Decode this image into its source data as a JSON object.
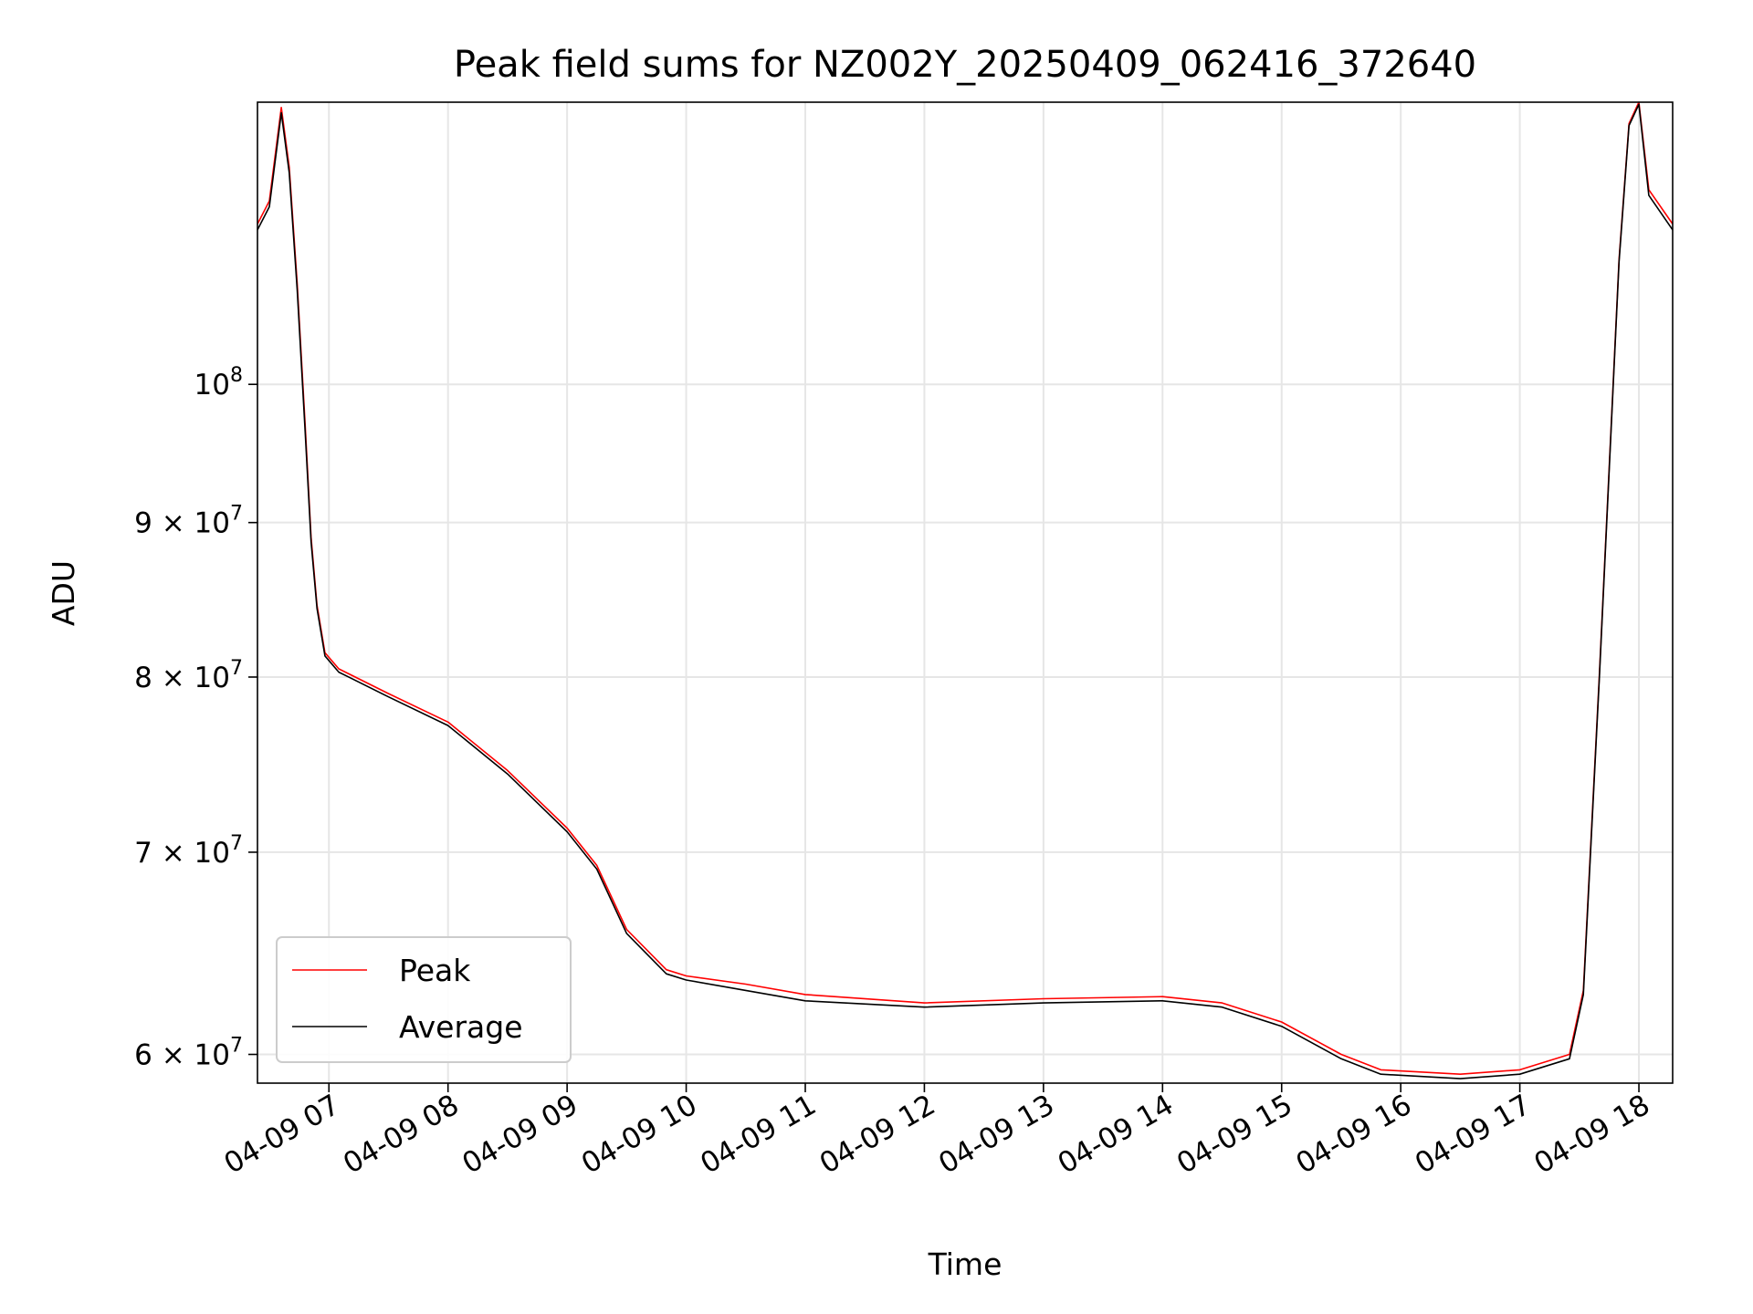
{
  "chart_data": {
    "type": "line",
    "title": "Peak field sums for NZ002Y_20250409_062416_372640",
    "xlabel": "Time",
    "ylabel": "ADU",
    "x_axis": "time",
    "y_scale": "log",
    "xlim": [
      "2025-04-09 06:24",
      "2025-04-09 18:17"
    ],
    "ylim": [
      58700000,
      124000000
    ],
    "x_ticks": [
      {
        "t": "2025-04-09 07:00",
        "label": "04-09 07"
      },
      {
        "t": "2025-04-09 08:00",
        "label": "04-09 08"
      },
      {
        "t": "2025-04-09 09:00",
        "label": "04-09 09"
      },
      {
        "t": "2025-04-09 10:00",
        "label": "04-09 10"
      },
      {
        "t": "2025-04-09 11:00",
        "label": "04-09 11"
      },
      {
        "t": "2025-04-09 12:00",
        "label": "04-09 12"
      },
      {
        "t": "2025-04-09 13:00",
        "label": "04-09 13"
      },
      {
        "t": "2025-04-09 14:00",
        "label": "04-09 14"
      },
      {
        "t": "2025-04-09 15:00",
        "label": "04-09 15"
      },
      {
        "t": "2025-04-09 16:00",
        "label": "04-09 16"
      },
      {
        "t": "2025-04-09 17:00",
        "label": "04-09 17"
      },
      {
        "t": "2025-04-09 18:00",
        "label": "04-09 18"
      }
    ],
    "y_ticks": [
      {
        "value": 60000000,
        "base": "6 × 10",
        "exp": "7"
      },
      {
        "value": 70000000,
        "base": "7 × 10",
        "exp": "7"
      },
      {
        "value": 80000000,
        "base": "8 × 10",
        "exp": "7"
      },
      {
        "value": 90000000,
        "base": "9 × 10",
        "exp": "7"
      },
      {
        "value": 100000000,
        "base": "10",
        "exp": "8"
      }
    ],
    "grid": true,
    "legend_position": "lower-left",
    "series": [
      {
        "name": "Peak",
        "color": "#ff0000",
        "x": [
          "2025-04-09 06:24",
          "2025-04-09 06:30",
          "2025-04-09 06:36",
          "2025-04-09 06:40",
          "2025-04-09 06:44",
          "2025-04-09 06:48",
          "2025-04-09 06:51",
          "2025-04-09 06:54",
          "2025-04-09 06:58",
          "2025-04-09 07:05",
          "2025-04-09 07:30",
          "2025-04-09 08:00",
          "2025-04-09 08:30",
          "2025-04-09 09:00",
          "2025-04-09 09:15",
          "2025-04-09 09:30",
          "2025-04-09 09:50",
          "2025-04-09 10:00",
          "2025-04-09 10:30",
          "2025-04-09 11:00",
          "2025-04-09 12:00",
          "2025-04-09 13:00",
          "2025-04-09 14:00",
          "2025-04-09 14:30",
          "2025-04-09 15:00",
          "2025-04-09 15:30",
          "2025-04-09 15:50",
          "2025-04-09 16:30",
          "2025-04-09 17:00",
          "2025-04-09 17:25",
          "2025-04-09 17:32",
          "2025-04-09 17:40",
          "2025-04-09 17:50",
          "2025-04-09 17:55",
          "2025-04-09 18:00",
          "2025-04-09 18:05",
          "2025-04-09 18:17"
        ],
        "values": [
          113000000,
          115000000,
          123500000,
          118000000,
          108000000,
          97000000,
          89000000,
          84500000,
          81500000,
          80500000,
          79000000,
          77300000,
          74500000,
          71300000,
          69300000,
          66000000,
          64000000,
          63700000,
          63300000,
          62800000,
          62400000,
          62600000,
          62700000,
          62400000,
          61500000,
          60000000,
          59300000,
          59100000,
          59300000,
          60000000,
          63000000,
          80000000,
          110000000,
          122000000,
          124000000,
          116000000,
          113000000
        ]
      },
      {
        "name": "Average",
        "color": "#000000",
        "x": [
          "2025-04-09 06:24",
          "2025-04-09 06:30",
          "2025-04-09 06:36",
          "2025-04-09 06:40",
          "2025-04-09 06:44",
          "2025-04-09 06:48",
          "2025-04-09 06:51",
          "2025-04-09 06:54",
          "2025-04-09 06:58",
          "2025-04-09 07:05",
          "2025-04-09 07:30",
          "2025-04-09 08:00",
          "2025-04-09 08:30",
          "2025-04-09 09:00",
          "2025-04-09 09:15",
          "2025-04-09 09:30",
          "2025-04-09 09:50",
          "2025-04-09 10:00",
          "2025-04-09 10:30",
          "2025-04-09 11:00",
          "2025-04-09 12:00",
          "2025-04-09 13:00",
          "2025-04-09 14:00",
          "2025-04-09 14:30",
          "2025-04-09 15:00",
          "2025-04-09 15:30",
          "2025-04-09 15:50",
          "2025-04-09 16:30",
          "2025-04-09 17:00",
          "2025-04-09 17:25",
          "2025-04-09 17:32",
          "2025-04-09 17:40",
          "2025-04-09 17:50",
          "2025-04-09 17:55",
          "2025-04-09 18:00",
          "2025-04-09 18:05",
          "2025-04-09 18:17"
        ],
        "values": [
          112500000,
          114500000,
          123000000,
          117500000,
          107500000,
          96500000,
          88700000,
          84300000,
          81300000,
          80300000,
          78800000,
          77100000,
          74300000,
          71100000,
          69100000,
          65800000,
          63800000,
          63500000,
          63000000,
          62500000,
          62200000,
          62400000,
          62500000,
          62200000,
          61300000,
          59800000,
          59100000,
          58900000,
          59100000,
          59800000,
          62800000,
          79800000,
          109800000,
          121800000,
          123800000,
          115500000,
          112500000
        ]
      }
    ]
  }
}
